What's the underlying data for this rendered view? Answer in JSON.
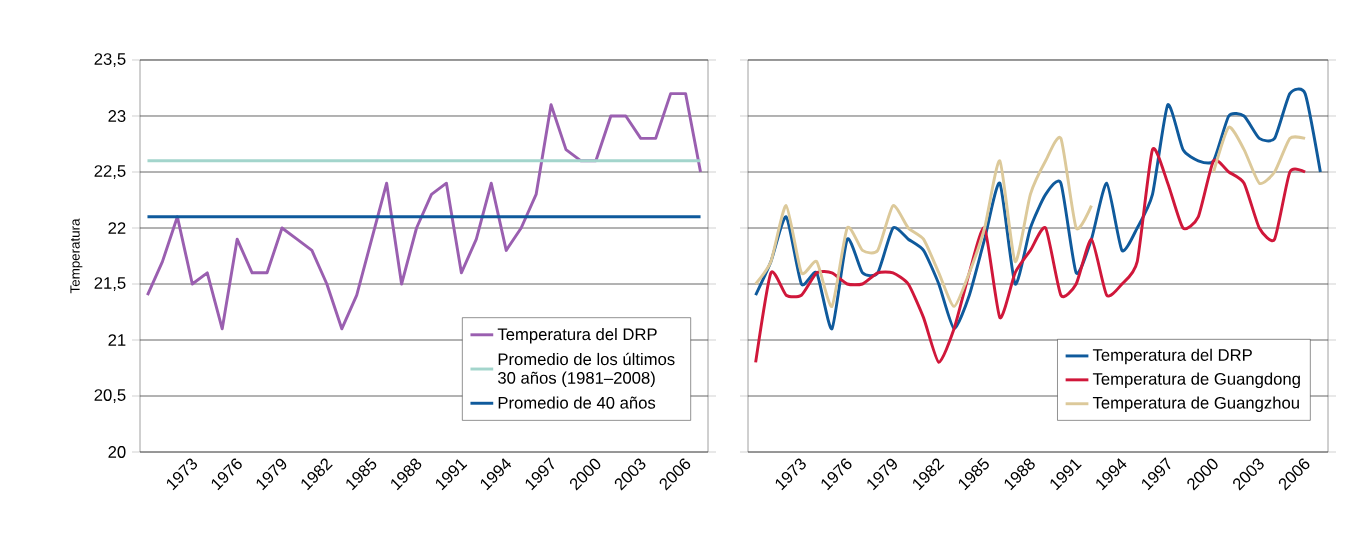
{
  "chart_data": [
    {
      "type": "line",
      "ylabel": "Temperatura",
      "categories": [
        null,
        null,
        "1973",
        null,
        null,
        "1976",
        null,
        null,
        "1979",
        null,
        null,
        "1982",
        null,
        null,
        "1985",
        null,
        null,
        "1988",
        null,
        null,
        "1991",
        null,
        null,
        "1994",
        null,
        null,
        "1997",
        null,
        null,
        "2000",
        null,
        null,
        "2003",
        null,
        null,
        "2006",
        null,
        null
      ],
      "series": [
        {
          "name": "Temperatura del DRP",
          "color": "#9a5fb0",
          "values": [
            21.4,
            21.7,
            22.1,
            21.5,
            21.6,
            21.1,
            21.9,
            21.6,
            21.6,
            22.0,
            21.9,
            21.8,
            21.5,
            21.1,
            21.4,
            21.9,
            22.4,
            21.5,
            22.0,
            22.3,
            22.4,
            21.6,
            21.9,
            22.4,
            21.8,
            22.0,
            22.3,
            23.1,
            22.7,
            22.6,
            22.6,
            23.0,
            23.0,
            22.8,
            22.8,
            23.2,
            23.2,
            22.5
          ]
        },
        {
          "name": "Promedio de los últimos 30 años (1981–2008)",
          "color": "#a3d5cc",
          "values": [
            22.6,
            22.6,
            22.6,
            22.6,
            22.6,
            22.6,
            22.6,
            22.6,
            22.6,
            22.6,
            22.6,
            22.6,
            22.6,
            22.6,
            22.6,
            22.6,
            22.6,
            22.6,
            22.6,
            22.6,
            22.6,
            22.6,
            22.6,
            22.6,
            22.6,
            22.6,
            22.6,
            22.6,
            22.6,
            22.6,
            22.6,
            22.6,
            22.6,
            22.6,
            22.6,
            22.6,
            22.6,
            22.6
          ]
        },
        {
          "name": "Promedio de 40 años",
          "color": "#0f5a9c",
          "values": [
            22.1,
            22.1,
            22.1,
            22.1,
            22.1,
            22.1,
            22.1,
            22.1,
            22.1,
            22.1,
            22.1,
            22.1,
            22.1,
            22.1,
            22.1,
            22.1,
            22.1,
            22.1,
            22.1,
            22.1,
            22.1,
            22.1,
            22.1,
            22.1,
            22.1,
            22.1,
            22.1,
            22.1,
            22.1,
            22.1,
            22.1,
            22.1,
            22.1,
            22.1,
            22.1,
            22.1,
            22.1,
            22.1
          ]
        }
      ],
      "ylim": [
        20,
        23.5
      ],
      "yticks": [
        20,
        {
          "value": 20.5,
          "label": "20,5"
        },
        21,
        {
          "value": 21.5,
          "label": "21,5"
        },
        22,
        {
          "value": 22.5,
          "label": "22,5"
        },
        23,
        {
          "value": 23.5,
          "label": "23,5"
        }
      ],
      "grid": "y",
      "legend": "bottom right",
      "marker": "none",
      "line_style": "solid"
    },
    {
      "type": "line",
      "categories": [
        null,
        null,
        "1973",
        null,
        null,
        "1976",
        null,
        null,
        "1979",
        null,
        null,
        "1982",
        null,
        null,
        "1985",
        null,
        null,
        "1988",
        null,
        null,
        "1991",
        null,
        null,
        "1994",
        null,
        null,
        "1997",
        null,
        null,
        "2000",
        null,
        null,
        "2003",
        null,
        null,
        "2006",
        null,
        null
      ],
      "series": [
        {
          "name": "Temperatura del DRP",
          "color": "#0f5a9c",
          "values": [
            21.4,
            21.7,
            22.1,
            21.5,
            21.6,
            21.1,
            21.9,
            21.6,
            21.6,
            22.0,
            21.9,
            21.8,
            21.5,
            21.1,
            21.4,
            21.9,
            22.4,
            21.5,
            22.0,
            22.3,
            22.4,
            21.6,
            21.9,
            22.4,
            21.8,
            22.0,
            22.3,
            23.1,
            22.7,
            22.6,
            22.6,
            23.0,
            23.0,
            22.8,
            22.8,
            23.2,
            23.2,
            22.5
          ]
        },
        {
          "name": "Temperatura de Guangdong",
          "color": "#d0173a",
          "values": [
            20.8,
            21.6,
            21.4,
            21.4,
            21.6,
            21.6,
            21.5,
            21.5,
            21.6,
            21.6,
            21.5,
            21.2,
            20.8,
            21.1,
            21.6,
            22.0,
            21.2,
            21.6,
            21.8,
            22.0,
            21.4,
            21.5,
            21.9,
            21.4,
            21.5,
            21.7,
            22.7,
            22.4,
            22.0,
            22.1,
            22.6,
            22.5,
            22.4,
            22.0,
            21.9,
            22.5,
            22.5,
            null
          ]
        },
        {
          "name": "Temperatura de Guangzhou",
          "color": "#dcc99a",
          "values": [
            21.5,
            21.7,
            22.2,
            21.6,
            21.7,
            21.3,
            22.0,
            21.8,
            21.8,
            22.2,
            22.0,
            21.9,
            21.6,
            21.3,
            21.6,
            22.0,
            22.6,
            21.7,
            22.3,
            22.6,
            22.8,
            22.0,
            22.2,
            null,
            null,
            null,
            null,
            null,
            null,
            null,
            22.5,
            22.9,
            22.7,
            22.4,
            22.5,
            22.8,
            22.8,
            null
          ]
        }
      ],
      "ylim": [
        20,
        23.5
      ],
      "yticks": [
        {
          "value": 20,
          "label": null
        },
        {
          "value": 20.5,
          "label": null
        },
        {
          "value": 21,
          "label": null
        },
        {
          "value": 21.5,
          "label": null
        },
        {
          "value": 22,
          "label": null
        },
        {
          "value": 22.5,
          "label": null
        },
        {
          "value": 23,
          "label": null
        },
        {
          "value": 23.5,
          "label": null
        }
      ],
      "tick_labels": "x",
      "grid": "y",
      "legend": "bottom right",
      "marker": "none",
      "line_style": "solid"
    }
  ]
}
